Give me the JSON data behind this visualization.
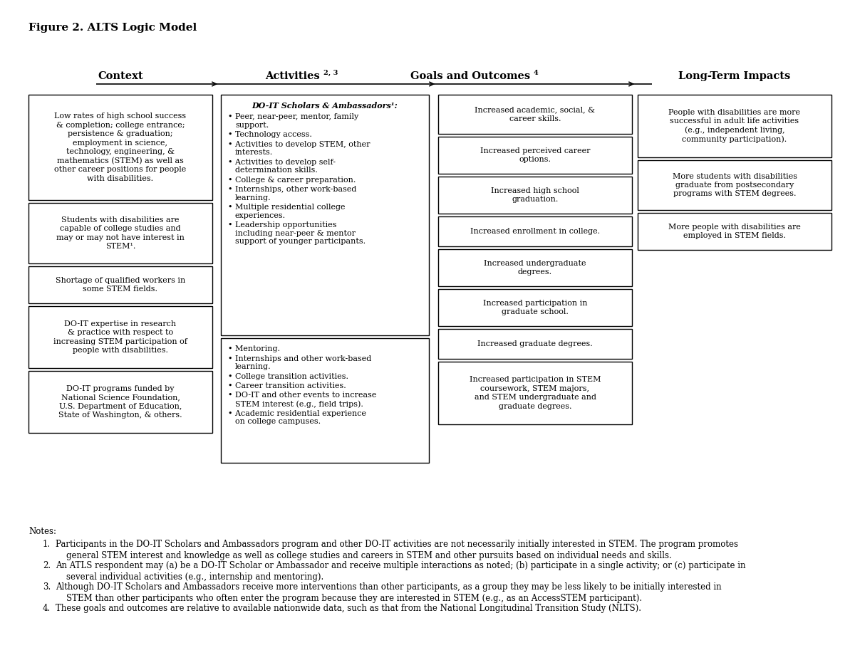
{
  "title": "Figure 2. ALTS Logic Model",
  "context_boxes": [
    "Low rates of high school success\n& completion; college entrance;\npersistence & graduation;\nemployment in science,\ntechnology, engineering, &\nmathematics (STEM) as well as\nother career positions for people\nwith disabilities.",
    "Students with disabilities are\ncapable of college studies and\nmay or may not have interest in\nSTEM¹.",
    "Shortage of qualified workers in\nsome STEM fields.",
    "DO-IT expertise in research\n& practice with respect to\nincreasing STEM participation of\npeople with disabilities.",
    "DO-IT programs funded by\nNational Science Foundation,\nU.S. Department of Education,\nState of Washington, & others."
  ],
  "activities_box1_title": "DO-IT Scholars & Ambassadors¹:",
  "activities_box1_items": [
    "Peer, near-peer, mentor, family\nsupport.",
    "Technology access.",
    "Activities to develop STEM, other\ninterests.",
    "Activities to develop self-\ndetermination skills.",
    "College & career preparation.",
    "Internships, other work-based\nlearning.",
    "Multiple residential college\nexperiences.",
    "Leadership opportunities\nincluding near-peer & mentor\nsupport of younger participants."
  ],
  "activities_box2_items": [
    "Mentoring.",
    "Internships and other work-based\nlearning.",
    "College transition activities.",
    "Career transition activities.",
    "DO-IT and other events to increase\nSTEM interest (e.g., field trips).",
    "Academic residential experience\non college campuses."
  ],
  "outcomes_boxes": [
    "Increased academic, social, &\ncareer skills.",
    "Increased perceived career\noptions.",
    "Increased high school\ngraduation.",
    "Increased enrollment in college.",
    "Increased undergraduate\ndegrees.",
    "Increased participation in\ngraduate school.",
    "Increased graduate degrees.",
    "Increased participation in STEM\ncoursework, STEM majors,\nand STEM undergraduate and\ngraduate degrees."
  ],
  "impacts_boxes": [
    "People with disabilities are more\nsuccessful in adult life activities\n(e.g., independent living,\ncommunity participation).",
    "More students with disabilities\ngraduate from postsecondary\nprograms with STEM degrees.",
    "More people with disabilities are\nemployed in STEM fields."
  ],
  "note1_parts": [
    [
      "normal",
      "Participants in the "
    ],
    [
      "italic",
      "DO-IT Scholars and Ambassadors"
    ],
    [
      "normal",
      " program and other DO-IT activities are not necessarily initially interested in STEM. The program promotes\n    general STEM interest and knowledge as well as college studies and careers in STEM and other pursuits based on individual needs and skills."
    ]
  ],
  "note2_parts": [
    [
      "normal",
      "An ATLS respondent may (a) be a "
    ],
    [
      "italic",
      "DO-IT Scholar or Ambassador"
    ],
    [
      "normal",
      " and receive multiple interactions as noted; (b) participate in a single activity; or (c) participate in\n    several individual activities (e.g., internship and mentoring)."
    ]
  ],
  "note3_parts": [
    [
      "normal",
      "Although "
    ],
    [
      "italic",
      "DO-IT Scholars and Ambassadors"
    ],
    [
      "normal",
      " receive more interventions than other participants, as a group they may be less likely to be initially interested in\n    STEM than other participants who often enter the program because they are interested in STEM (e.g., as an "
    ],
    [
      "italic",
      "AccessSTEM"
    ],
    [
      "normal",
      " participant)."
    ]
  ],
  "note4_parts": [
    [
      "normal",
      "These goals and outcomes are relative to available nationwide data, such as that from the National Longitudinal Transition Study (NLTS)."
    ]
  ],
  "bg_color": "#ffffff",
  "box_edge_color": "#000000",
  "text_color": "#000000"
}
